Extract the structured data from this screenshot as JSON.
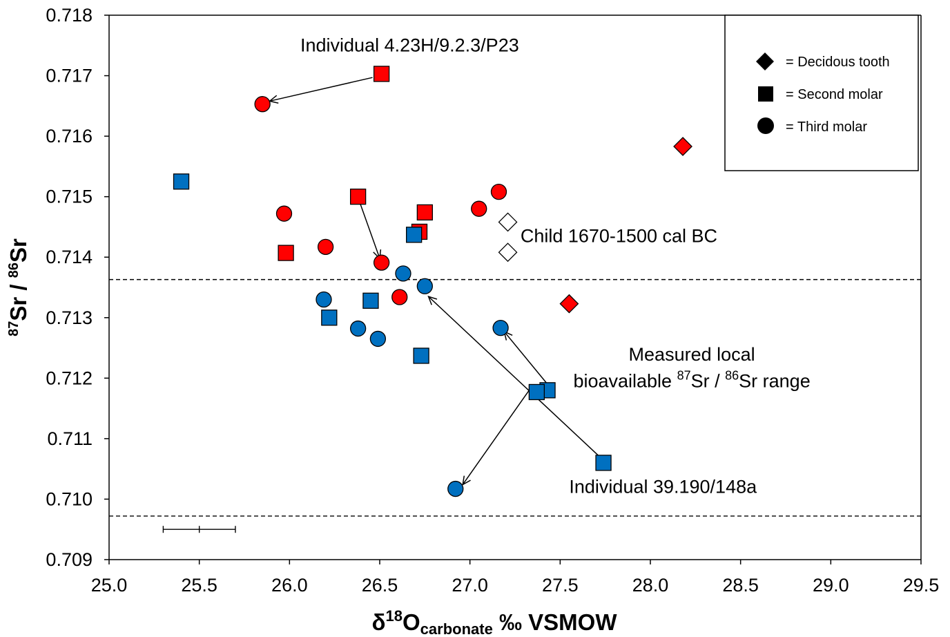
{
  "chart_data": {
    "type": "scatter",
    "xlim": [
      25.0,
      29.5
    ],
    "ylim": [
      0.709,
      0.718
    ],
    "x_ticks": [
      "25.0",
      "25.5",
      "26.0",
      "26.5",
      "27.0",
      "27.5",
      "28.0",
      "28.5",
      "29.0",
      "29.5"
    ],
    "y_ticks": [
      "0.709",
      "0.710",
      "0.711",
      "0.712",
      "0.713",
      "0.714",
      "0.715",
      "0.716",
      "0.717",
      "0.718"
    ],
    "xlabel": {
      "delta": "δ",
      "sup": "18",
      "main": "O",
      "sub": "carbonate",
      "rest": " ‰ VSMOW"
    },
    "ylabel": {
      "sup1": "87",
      "main1": "Sr / ",
      "sup2": "86",
      "main2": "Sr"
    },
    "colors": {
      "red": "#ff0000",
      "blue": "#0070c0",
      "open": "#ffffff"
    },
    "local_range": [
      0.70972,
      0.71363
    ],
    "error_bar": {
      "x": 25.5,
      "y": 0.7095,
      "xerr": 0.2
    },
    "legend": {
      "placement": "top-right",
      "items": [
        {
          "shape": "diamond",
          "label": "= Decidous tooth"
        },
        {
          "shape": "square",
          "label": "= Second molar"
        },
        {
          "shape": "circle",
          "label": "= Third molar"
        }
      ]
    },
    "points": [
      {
        "x": 26.51,
        "y": 0.71703,
        "shape": "square",
        "color": "red"
      },
      {
        "x": 25.85,
        "y": 0.71653,
        "shape": "circle",
        "color": "red"
      },
      {
        "x": 28.18,
        "y": 0.71583,
        "shape": "diamond",
        "color": "red"
      },
      {
        "x": 25.4,
        "y": 0.71525,
        "shape": "square",
        "color": "blue"
      },
      {
        "x": 27.16,
        "y": 0.71508,
        "shape": "circle",
        "color": "red"
      },
      {
        "x": 26.38,
        "y": 0.715,
        "shape": "square",
        "color": "red"
      },
      {
        "x": 27.05,
        "y": 0.7148,
        "shape": "circle",
        "color": "red"
      },
      {
        "x": 26.75,
        "y": 0.71474,
        "shape": "square",
        "color": "red"
      },
      {
        "x": 25.97,
        "y": 0.71472,
        "shape": "circle",
        "color": "red"
      },
      {
        "x": 27.21,
        "y": 0.71458,
        "shape": "diamond",
        "color": "open"
      },
      {
        "x": 26.72,
        "y": 0.71442,
        "shape": "square",
        "color": "red"
      },
      {
        "x": 26.69,
        "y": 0.71437,
        "shape": "square",
        "color": "blue"
      },
      {
        "x": 26.2,
        "y": 0.71417,
        "shape": "circle",
        "color": "red"
      },
      {
        "x": 27.21,
        "y": 0.71408,
        "shape": "diamond",
        "color": "open"
      },
      {
        "x": 25.98,
        "y": 0.71407,
        "shape": "square",
        "color": "red"
      },
      {
        "x": 26.51,
        "y": 0.71391,
        "shape": "circle",
        "color": "red"
      },
      {
        "x": 26.63,
        "y": 0.71373,
        "shape": "circle",
        "color": "blue"
      },
      {
        "x": 26.75,
        "y": 0.71352,
        "shape": "circle",
        "color": "blue"
      },
      {
        "x": 26.61,
        "y": 0.71334,
        "shape": "circle",
        "color": "red"
      },
      {
        "x": 26.19,
        "y": 0.7133,
        "shape": "circle",
        "color": "blue"
      },
      {
        "x": 26.45,
        "y": 0.71328,
        "shape": "square",
        "color": "blue"
      },
      {
        "x": 27.55,
        "y": 0.71323,
        "shape": "diamond",
        "color": "red"
      },
      {
        "x": 26.22,
        "y": 0.713,
        "shape": "square",
        "color": "blue"
      },
      {
        "x": 26.38,
        "y": 0.71282,
        "shape": "circle",
        "color": "blue"
      },
      {
        "x": 27.17,
        "y": 0.71283,
        "shape": "circle",
        "color": "blue"
      },
      {
        "x": 26.49,
        "y": 0.71265,
        "shape": "circle",
        "color": "blue"
      },
      {
        "x": 26.73,
        "y": 0.71237,
        "shape": "square",
        "color": "blue"
      },
      {
        "x": 27.43,
        "y": 0.7118,
        "shape": "square",
        "color": "blue"
      },
      {
        "x": 27.37,
        "y": 0.71177,
        "shape": "square",
        "color": "blue"
      },
      {
        "x": 27.74,
        "y": 0.7106,
        "shape": "square",
        "color": "blue"
      },
      {
        "x": 26.92,
        "y": 0.71017,
        "shape": "circle",
        "color": "blue"
      }
    ],
    "arrows": [
      {
        "from": [
          26.46,
          0.71697
        ],
        "to": [
          25.89,
          0.71658
        ]
      },
      {
        "from": [
          26.39,
          0.7149
        ],
        "to": [
          26.5,
          0.71398
        ]
      },
      {
        "from": [
          27.73,
          0.71067
        ],
        "to": [
          26.77,
          0.71335
        ]
      },
      {
        "from": [
          27.34,
          0.71185
        ],
        "to": [
          26.96,
          0.71024
        ]
      },
      {
        "from": [
          27.43,
          0.7119
        ],
        "to": [
          27.19,
          0.71277
        ]
      }
    ],
    "annotations": [
      {
        "text": "Individual  4.23H/9.2.3/P23",
        "x": 26.06,
        "y": 0.7174
      },
      {
        "text": "Child 1670-1500 cal BC",
        "x": 27.28,
        "y": 0.71425
      },
      {
        "text": "Measured local",
        "x": 28.23,
        "y": 0.71229,
        "anchor": "middle"
      },
      {
        "text": "Individual  39.190/148a",
        "x": 27.55,
        "y": 0.7101
      }
    ],
    "range_label": {
      "pre": "bioavailable ",
      "sup1": "87",
      "mid": "Sr / ",
      "sup2": "86",
      "post": "Sr range",
      "x": 28.23,
      "y": 0.71185
    }
  }
}
